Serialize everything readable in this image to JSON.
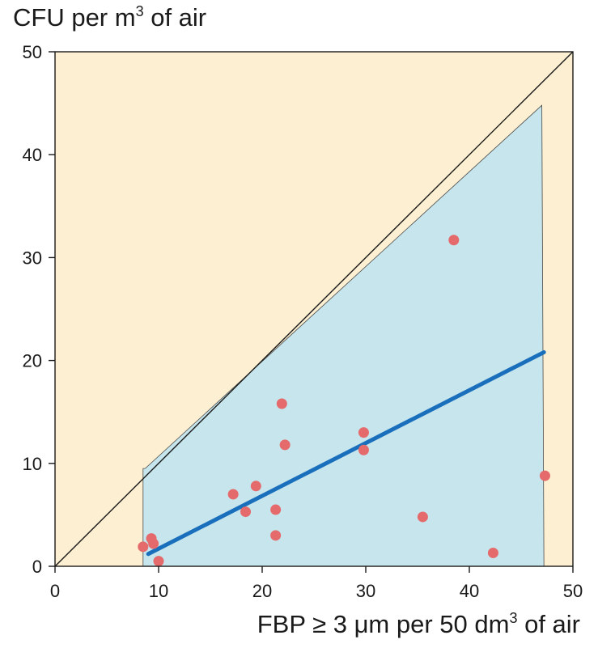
{
  "chart_data": {
    "type": "scatter",
    "ylabel": {
      "prefix": "CFU per m",
      "sup": "3",
      "suffix": " of air"
    },
    "xlabel": {
      "prefix": "FBP ≥ 3 μm per 50 dm",
      "sup": "3",
      "suffix": " of air"
    },
    "xlim": [
      0,
      50
    ],
    "ylim": [
      0,
      50
    ],
    "xticks": [
      0,
      10,
      20,
      30,
      40,
      50
    ],
    "yticks": [
      0,
      10,
      20,
      30,
      40,
      50
    ],
    "background_color": "#fdefd1",
    "band_color": "#c6e5ec",
    "point_color": "#e46a6c",
    "line_color": "#1a6fbc",
    "identity_line": {
      "x": [
        0,
        50
      ],
      "y": [
        0,
        50
      ]
    },
    "fit_line": {
      "x": [
        9.0,
        47.2
      ],
      "y": [
        1.2,
        20.8
      ]
    },
    "band": {
      "x": [
        8.5,
        8.7,
        47.0,
        47.2,
        8.5
      ],
      "upper": [
        9.5,
        9.5,
        44.8,
        44.8,
        9.5
      ],
      "polygon": [
        [
          8.5,
          0
        ],
        [
          8.5,
          9.5
        ],
        [
          8.7,
          9.5
        ],
        [
          47.0,
          44.8
        ],
        [
          47.2,
          0
        ]
      ]
    },
    "points": [
      {
        "x": 8.5,
        "y": 1.9
      },
      {
        "x": 9.3,
        "y": 2.7
      },
      {
        "x": 9.5,
        "y": 2.2
      },
      {
        "x": 10.0,
        "y": 0.5
      },
      {
        "x": 17.2,
        "y": 7.0
      },
      {
        "x": 18.4,
        "y": 5.3
      },
      {
        "x": 19.4,
        "y": 7.8
      },
      {
        "x": 21.3,
        "y": 5.5
      },
      {
        "x": 21.3,
        "y": 3.0
      },
      {
        "x": 21.9,
        "y": 15.8
      },
      {
        "x": 22.2,
        "y": 11.8
      },
      {
        "x": 29.8,
        "y": 13.0
      },
      {
        "x": 29.8,
        "y": 11.3
      },
      {
        "x": 35.5,
        "y": 4.8
      },
      {
        "x": 38.5,
        "y": 31.7
      },
      {
        "x": 42.3,
        "y": 1.3
      },
      {
        "x": 47.3,
        "y": 8.8
      }
    ]
  }
}
